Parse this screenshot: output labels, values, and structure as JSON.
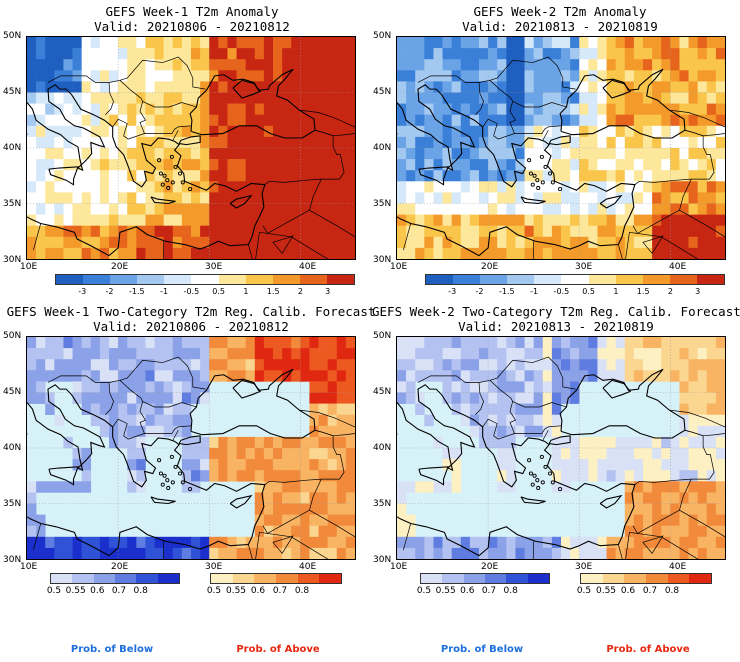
{
  "panels": [
    {
      "title": "GEFS Week-1 T2m Anomaly",
      "valid": "Valid: 20210806 - 20210812",
      "scheme": "anomaly1"
    },
    {
      "title": "GEFS Week-2 T2m Anomaly",
      "valid": "Valid: 20210813 - 20210819",
      "scheme": "anomaly2"
    },
    {
      "title": "GEFS Week-1 Two-Category T2m Reg. Calib. Forecast",
      "valid": "Valid: 20210806 - 20210812",
      "scheme": "prob1"
    },
    {
      "title": "GEFS Week-2 Two-Category T2m Reg. Calib. Forecast",
      "valid": "Valid: 20210813 - 20210819",
      "scheme": "prob2"
    }
  ],
  "axes": {
    "lat_labels": [
      "50N",
      "45N",
      "40N",
      "35N",
      "30N"
    ],
    "lon_labels": [
      "10E",
      "20E",
      "30E",
      "40E"
    ]
  },
  "anomaly_colorbar": {
    "labels": [
      "-3",
      "-2",
      "-1.5",
      "-1",
      "-0.5",
      "0.5",
      "1",
      "1.5",
      "2",
      "3"
    ],
    "colors": [
      "#1f5fbf",
      "#3a7fd8",
      "#6aa4e6",
      "#a3c9f1",
      "#d6e9fa",
      "#ffffff",
      "#fde79a",
      "#f9c54a",
      "#f49a2a",
      "#e6641c",
      "#c72612"
    ]
  },
  "prob_colorbars": {
    "below_colors": [
      "#d9e1f7",
      "#b3c2f0",
      "#8ba1e8",
      "#5f7de0",
      "#2f52d6",
      "#1a2fcc"
    ],
    "above_colors": [
      "#fdf0c2",
      "#fbd690",
      "#f8b462",
      "#f28a3b",
      "#ec5a22",
      "#e02810"
    ],
    "labels": [
      "0.5",
      "0.55",
      "0.6",
      "0.7",
      "0.8"
    ]
  },
  "legend": {
    "below": "Prob. of Below",
    "above": "Prob. of Above"
  },
  "colors": {
    "sea": "#d6f2f8",
    "below_text": "#1e6fdc",
    "above_text": "#e62810",
    "coast": "#000000"
  }
}
